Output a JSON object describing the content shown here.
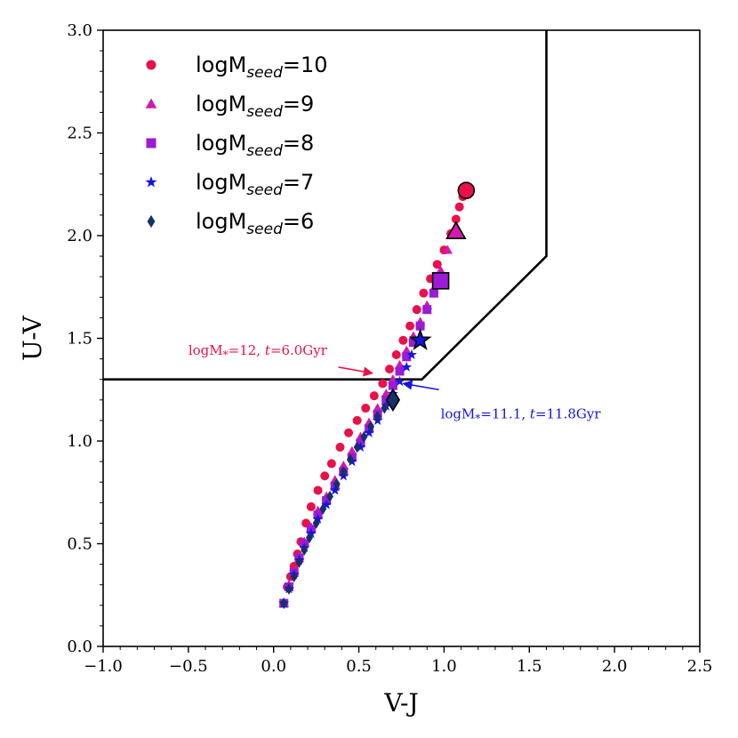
{
  "chart_data": {
    "type": "scatter",
    "xlabel": "V-J",
    "ylabel": "U-V",
    "xlim": [
      -1.0,
      2.5
    ],
    "ylim": [
      0.0,
      3.0
    ],
    "x_ticks": [
      "−1.0",
      "−0.5",
      "0.0",
      "0.5",
      "1.0",
      "1.5",
      "2.0",
      "2.5"
    ],
    "x_tick_values": [
      -1.0,
      -0.5,
      0.0,
      0.5,
      1.0,
      1.5,
      2.0,
      2.5
    ],
    "y_ticks": [
      "0.0",
      "0.5",
      "1.0",
      "1.5",
      "2.0",
      "2.5",
      "3.0"
    ],
    "y_tick_values": [
      0.0,
      0.5,
      1.0,
      1.5,
      2.0,
      2.5,
      3.0
    ],
    "legend_position": "top-left",
    "boundary_line": {
      "x": [
        -1.0,
        0.87,
        1.6,
        1.6
      ],
      "y": [
        1.3,
        1.3,
        1.9,
        3.0
      ]
    },
    "series": [
      {
        "name": "logMseed=10",
        "legend_main": "logM",
        "legend_sub": "seed",
        "legend_suffix": "=10",
        "marker": "circle",
        "color": "#e8114a",
        "final_marker": {
          "x": 1.13,
          "y": 2.22
        },
        "x": [
          0.06,
          0.08,
          0.1,
          0.12,
          0.14,
          0.16,
          0.19,
          0.22,
          0.26,
          0.3,
          0.34,
          0.39,
          0.44,
          0.49,
          0.54,
          0.59,
          0.64,
          0.68,
          0.72,
          0.76,
          0.8,
          0.84,
          0.88,
          0.92,
          0.96,
          1.0,
          1.04,
          1.07,
          1.09,
          1.11
        ],
        "y": [
          0.21,
          0.29,
          0.34,
          0.39,
          0.45,
          0.51,
          0.6,
          0.68,
          0.76,
          0.83,
          0.89,
          0.97,
          1.04,
          1.1,
          1.16,
          1.22,
          1.28,
          1.35,
          1.42,
          1.49,
          1.56,
          1.64,
          1.72,
          1.79,
          1.86,
          1.93,
          2.01,
          2.08,
          2.14,
          2.19
        ]
      },
      {
        "name": "logMseed=9",
        "legend_main": "logM",
        "legend_sub": "seed",
        "legend_suffix": "=9",
        "marker": "triangle",
        "color": "#d21aab",
        "final_marker": {
          "x": 1.07,
          "y": 2.02
        },
        "x": [
          0.06,
          0.09,
          0.12,
          0.15,
          0.18,
          0.22,
          0.26,
          0.31,
          0.36,
          0.41,
          0.46,
          0.51,
          0.56,
          0.61,
          0.66,
          0.7,
          0.74,
          0.78,
          0.82,
          0.86,
          0.9,
          0.94,
          0.98,
          1.02
        ],
        "y": [
          0.21,
          0.3,
          0.37,
          0.44,
          0.51,
          0.58,
          0.66,
          0.73,
          0.81,
          0.88,
          0.95,
          1.02,
          1.09,
          1.16,
          1.23,
          1.3,
          1.37,
          1.44,
          1.51,
          1.58,
          1.66,
          1.74,
          1.83,
          1.93
        ]
      },
      {
        "name": "logMseed=8",
        "legend_main": "logM",
        "legend_sub": "seed",
        "legend_suffix": "=8",
        "marker": "square",
        "color": "#9b1bd6",
        "final_marker": {
          "x": 0.98,
          "y": 1.78
        },
        "x": [
          0.06,
          0.09,
          0.12,
          0.15,
          0.18,
          0.22,
          0.26,
          0.31,
          0.36,
          0.41,
          0.46,
          0.51,
          0.56,
          0.61,
          0.66,
          0.7,
          0.74,
          0.78,
          0.82,
          0.86,
          0.9,
          0.94
        ],
        "y": [
          0.21,
          0.29,
          0.36,
          0.43,
          0.5,
          0.57,
          0.64,
          0.71,
          0.78,
          0.85,
          0.92,
          0.99,
          1.06,
          1.13,
          1.2,
          1.27,
          1.34,
          1.41,
          1.48,
          1.56,
          1.64,
          1.72
        ]
      },
      {
        "name": "logMseed=7",
        "legend_main": "logM",
        "legend_sub": "seed",
        "legend_suffix": "=7",
        "marker": "star",
        "color": "#1515e0",
        "final_marker": {
          "x": 0.86,
          "y": 1.49
        },
        "x": [
          0.06,
          0.09,
          0.12,
          0.15,
          0.18,
          0.22,
          0.26,
          0.31,
          0.36,
          0.41,
          0.46,
          0.51,
          0.56,
          0.61,
          0.66,
          0.7,
          0.74,
          0.78,
          0.81
        ],
        "y": [
          0.21,
          0.28,
          0.35,
          0.42,
          0.48,
          0.55,
          0.62,
          0.69,
          0.76,
          0.83,
          0.9,
          0.97,
          1.04,
          1.1,
          1.17,
          1.23,
          1.29,
          1.36,
          1.42
        ]
      },
      {
        "name": "logMseed=6",
        "legend_main": "logM",
        "legend_sub": "seed",
        "legend_suffix": "=6",
        "marker": "diamond",
        "color": "#15306b",
        "final_marker": {
          "x": 0.7,
          "y": 1.2
        },
        "x": [
          0.06,
          0.09,
          0.12,
          0.15,
          0.18,
          0.21,
          0.25,
          0.29,
          0.33,
          0.37,
          0.41,
          0.45,
          0.49,
          0.53,
          0.57,
          0.61,
          0.65
        ],
        "y": [
          0.21,
          0.28,
          0.34,
          0.41,
          0.47,
          0.53,
          0.6,
          0.67,
          0.73,
          0.79,
          0.85,
          0.91,
          0.97,
          1.02,
          1.07,
          1.12,
          1.16
        ]
      }
    ],
    "annotations": [
      {
        "name": "annotation-seed10",
        "text_main": "logM",
        "text_sub": "*",
        "text_mid": "=12, ",
        "text_t": "t",
        "text_end": "=6.0Gyr",
        "color": "#e8114a",
        "text_x": -0.5,
        "text_y": 1.42,
        "arrow_from": {
          "x": 0.38,
          "y": 1.36
        },
        "arrow_to": {
          "x": 0.58,
          "y": 1.33
        }
      },
      {
        "name": "annotation-seed6",
        "text_main": "logM",
        "text_sub": "*",
        "text_mid": "=11.1, ",
        "text_t": "t",
        "text_end": "=11.8Gyr",
        "color": "#1515e0",
        "text_x": 0.98,
        "text_y": 1.11,
        "arrow_from": {
          "x": 0.97,
          "y": 1.25
        },
        "arrow_to": {
          "x": 0.76,
          "y": 1.28
        }
      }
    ]
  }
}
